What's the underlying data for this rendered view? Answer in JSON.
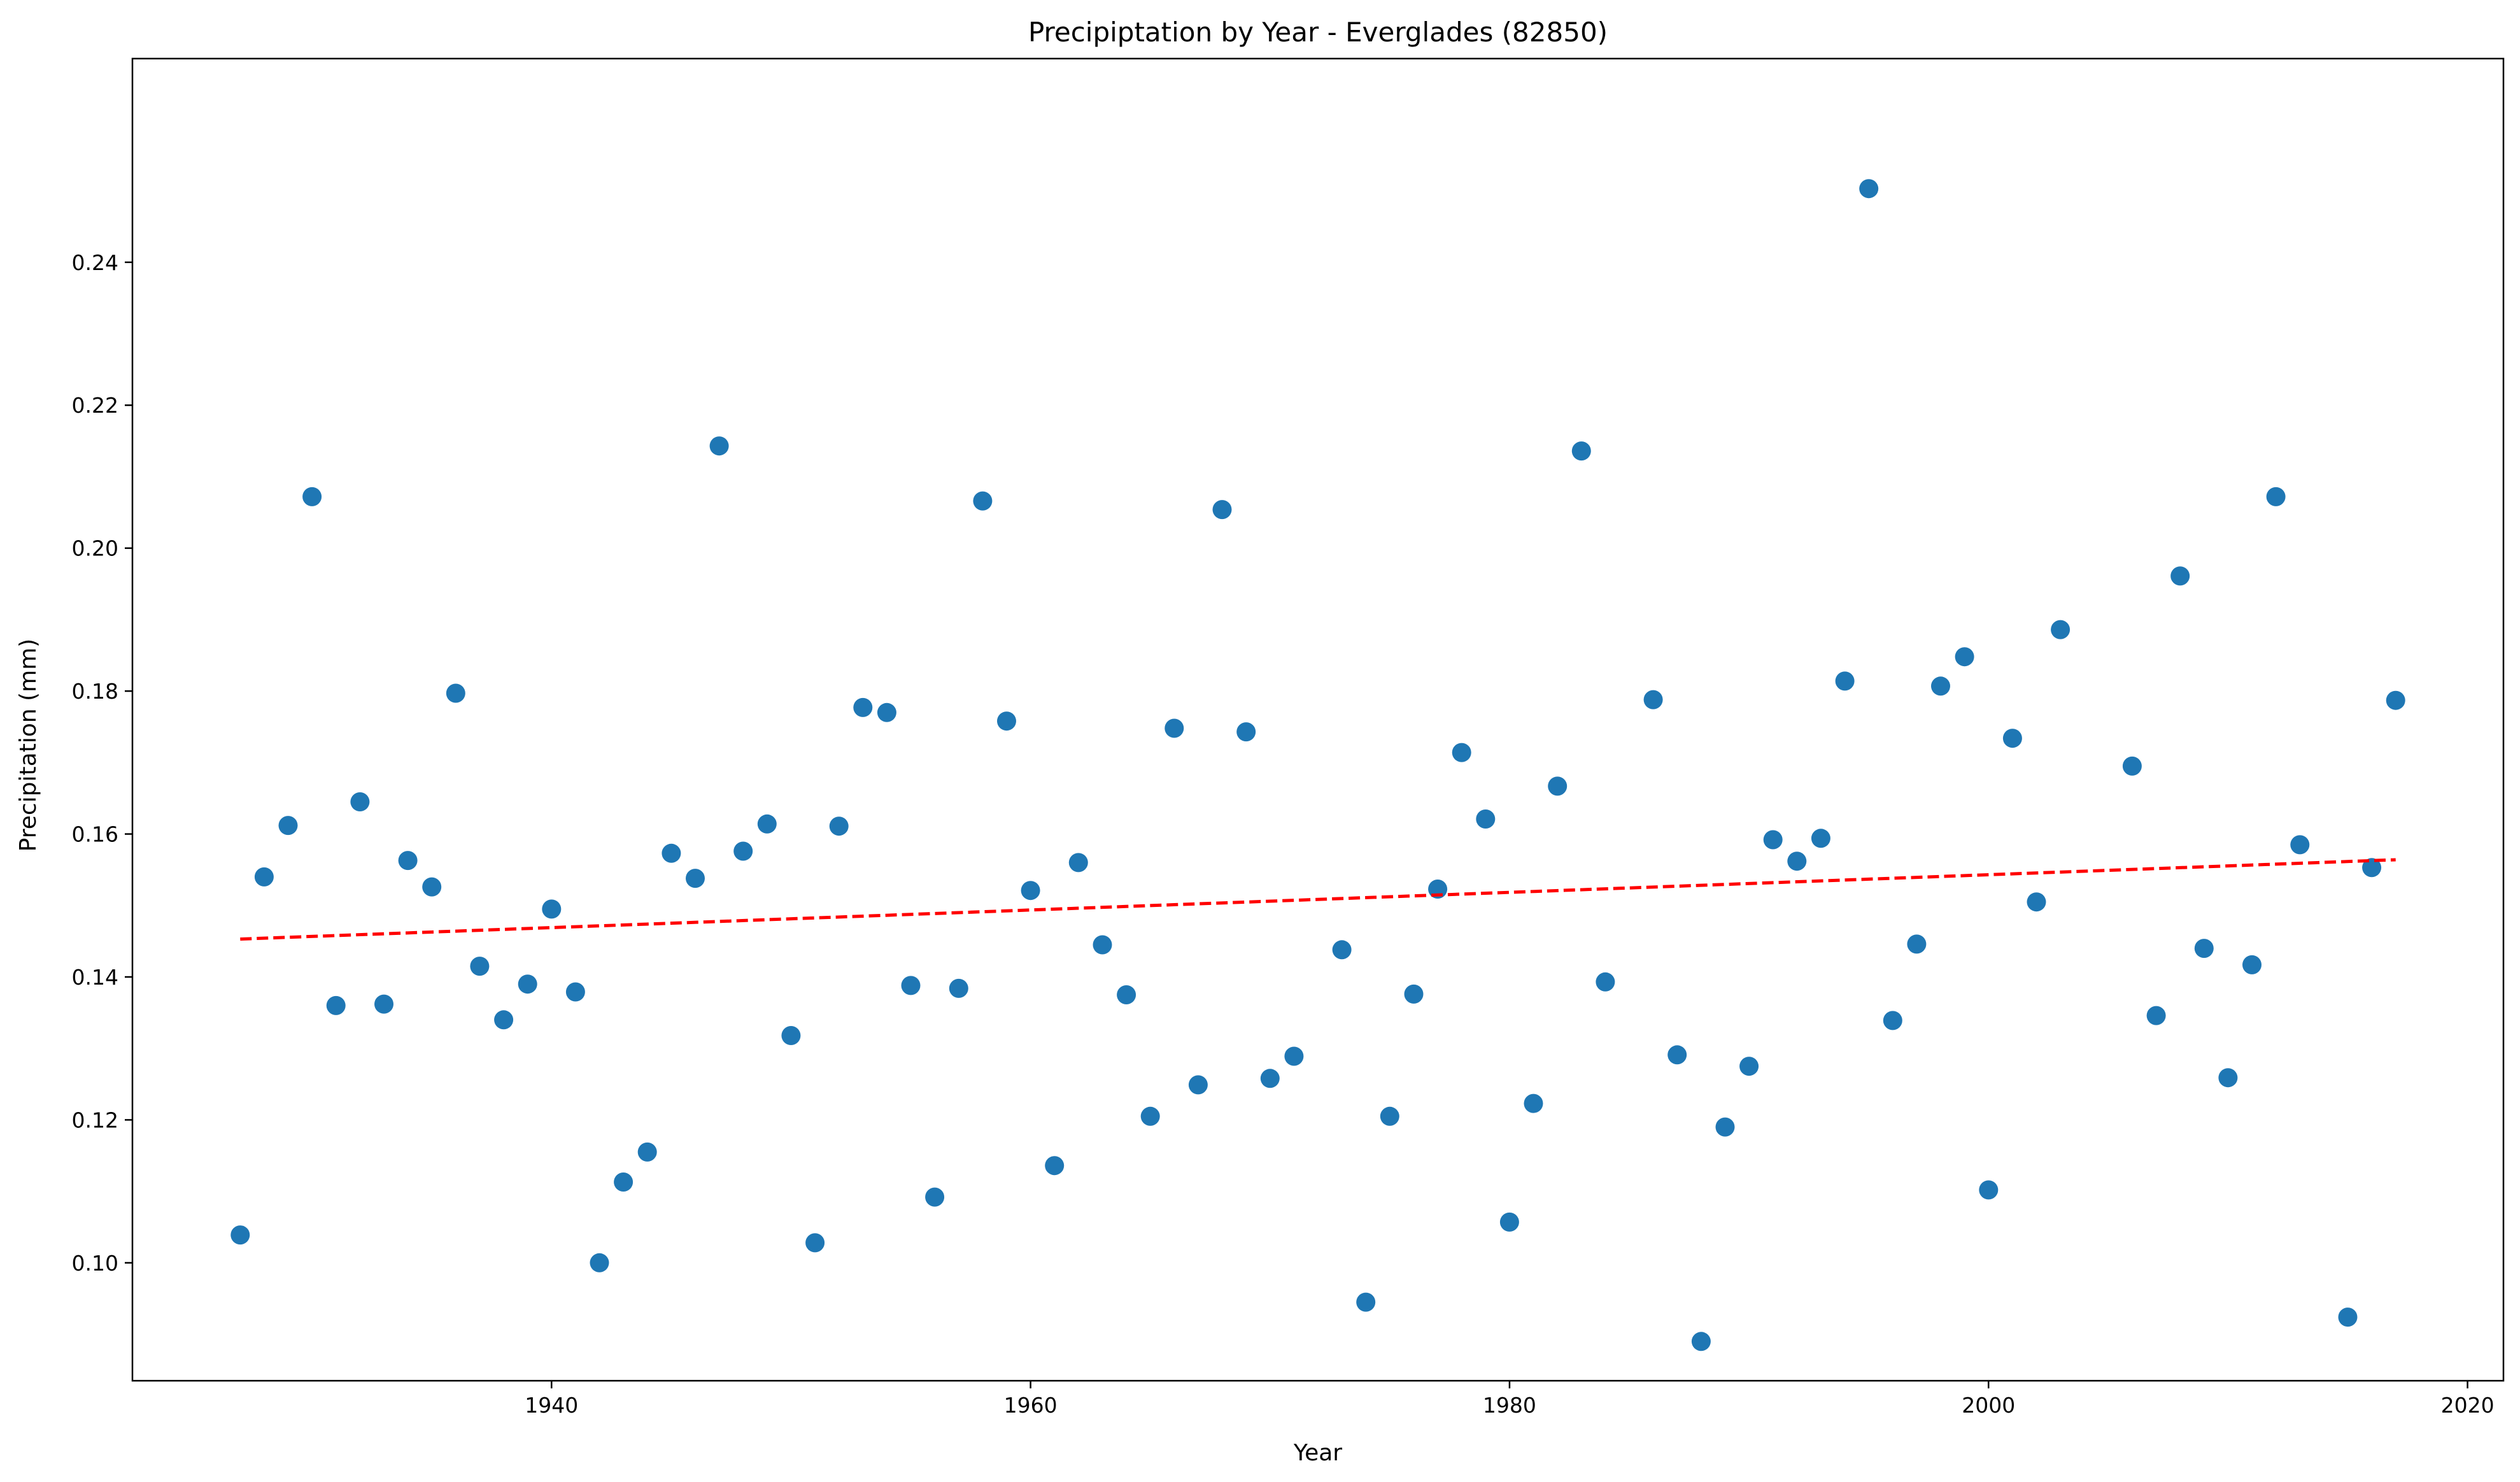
{
  "chart_data": {
    "type": "scatter",
    "title": "Precipiptation by Year - Everglades (82850)",
    "xlabel": "Year",
    "ylabel": "Precipitation (mm)",
    "xlim": [
      1922.5,
      2021.5
    ],
    "ylim": [
      0.0835,
      0.2685
    ],
    "x_ticks": [
      1940,
      1960,
      1980,
      2000,
      2020
    ],
    "y_ticks": [
      0.1,
      0.12,
      0.14,
      0.16,
      0.18,
      0.2,
      0.22,
      0.24
    ],
    "grid": false,
    "marker_color": "#1f77b4",
    "trend_color": "#ff0000",
    "series": [
      {
        "x": [
          1927,
          1928,
          1929,
          1930,
          1931,
          1932,
          1933,
          1934,
          1935,
          1936,
          1937,
          1938,
          1939,
          1940,
          1941,
          1942,
          1943,
          1944,
          1945,
          1946,
          1947,
          1948,
          1949,
          1950,
          1951,
          1952,
          1953,
          1954,
          1955,
          1956,
          1957,
          1958,
          1959,
          1960,
          1961,
          1962,
          1963,
          1964,
          1965,
          1966,
          1967,
          1968,
          1969,
          1970,
          1971,
          1973,
          1974,
          1975,
          1976,
          1977,
          1978,
          1979,
          1980,
          1981,
          1982,
          1983,
          1984,
          1986,
          1987,
          1988,
          1989,
          1990,
          1991,
          1992,
          1993,
          1994,
          1995,
          1996,
          1997,
          1998,
          1999,
          2000,
          2001,
          2002,
          2003,
          2006,
          2007,
          2008,
          2009,
          2010,
          2011,
          2012,
          2013,
          2015,
          2016,
          2017
        ],
        "y": [
          0.1039,
          0.154,
          0.1612,
          0.2072,
          0.136,
          0.1645,
          0.1362,
          0.1563,
          0.1526,
          0.1797,
          0.1415,
          0.134,
          0.139,
          0.1495,
          0.1379,
          0.1,
          0.1113,
          0.1155,
          0.1573,
          0.1538,
          0.2143,
          0.1576,
          0.1614,
          0.1318,
          0.1028,
          0.1611,
          0.1777,
          0.177,
          0.1388,
          0.1092,
          0.1384,
          0.2066,
          0.1758,
          0.1521,
          0.1136,
          0.156,
          0.1445,
          0.1375,
          0.1205,
          0.1748,
          0.1249,
          0.2054,
          0.1743,
          0.1258,
          0.1289,
          0.1438,
          0.0945,
          0.1205,
          0.1376,
          0.1523,
          0.1714,
          0.1621,
          0.1057,
          0.1223,
          0.1667,
          0.2136,
          0.1393,
          0.1788,
          0.1291,
          0.089,
          0.119,
          0.1275,
          0.1592,
          0.1562,
          0.1594,
          0.1814,
          0.2503,
          0.1339,
          0.1446,
          0.1807,
          0.1848,
          0.1102,
          0.1734,
          0.1505,
          0.1886,
          0.1695,
          0.1346,
          0.1961,
          0.144,
          0.1259,
          0.1417,
          0.2072,
          0.1585,
          0.0924,
          0.1553,
          0.1787
        ]
      }
    ],
    "trend": {
      "x": [
        1927,
        2017
      ],
      "y": [
        0.1453,
        0.1564
      ]
    }
  }
}
